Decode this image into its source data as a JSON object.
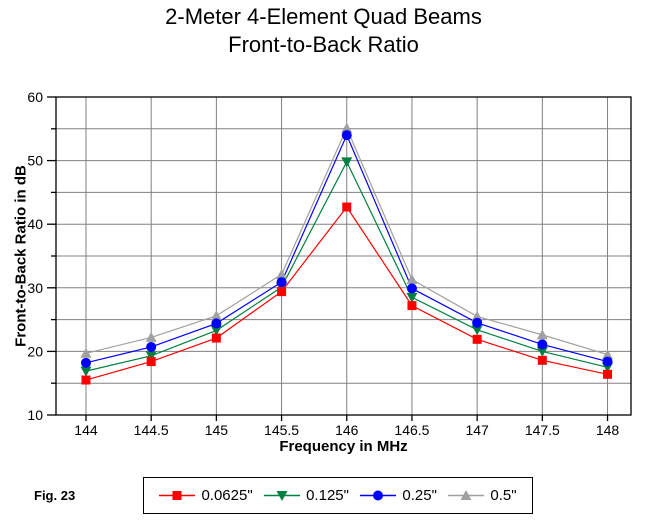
{
  "title": {
    "line1": "2-Meter 4-Element Quad Beams",
    "line2": "Front-to-Back Ratio"
  },
  "figure_label": "Fig. 23",
  "chart_data": {
    "type": "line",
    "x": [
      144,
      144.5,
      145,
      145.5,
      146,
      146.5,
      147,
      147.5,
      148
    ],
    "x_tick_labels": [
      "144",
      "144.5",
      "145",
      "145.5",
      "146",
      "146.5",
      "147",
      "147.5",
      "148"
    ],
    "xlabel": "Frequency in MHz",
    "ylabel": "Front-to-Back Ratio in dB",
    "xlim": [
      143.77,
      148.18
    ],
    "ylim": [
      10,
      60
    ],
    "y_ticks_labeled": [
      10,
      20,
      30,
      40,
      50,
      60
    ],
    "y_ticks_minor": [
      15,
      25,
      35,
      45,
      55
    ],
    "grid": true,
    "legend_position": "bottom",
    "colors": {
      "grid": "#808080",
      "axis": "#000000",
      "background": "#ffffff"
    },
    "series": [
      {
        "name": "0.0625\"",
        "color": "#ff0000",
        "marker": "square",
        "values": [
          15.5,
          18.4,
          22.1,
          29.4,
          42.7,
          27.2,
          21.9,
          18.6,
          16.4
        ]
      },
      {
        "name": "0.125\"",
        "color": "#008040",
        "marker": "triangle-down",
        "values": [
          16.9,
          19.3,
          23.3,
          30.1,
          49.8,
          28.5,
          23.4,
          20.0,
          17.5
        ]
      },
      {
        "name": "0.25\"",
        "color": "#0000ff",
        "marker": "circle",
        "values": [
          18.2,
          20.7,
          24.4,
          30.9,
          54.0,
          29.9,
          24.5,
          21.1,
          18.4
        ]
      },
      {
        "name": "0.5\"",
        "color": "#a0a0a0",
        "marker": "triangle-up",
        "values": [
          19.7,
          22.2,
          25.6,
          32.1,
          55.1,
          31.3,
          25.5,
          22.6,
          19.5
        ]
      }
    ]
  }
}
